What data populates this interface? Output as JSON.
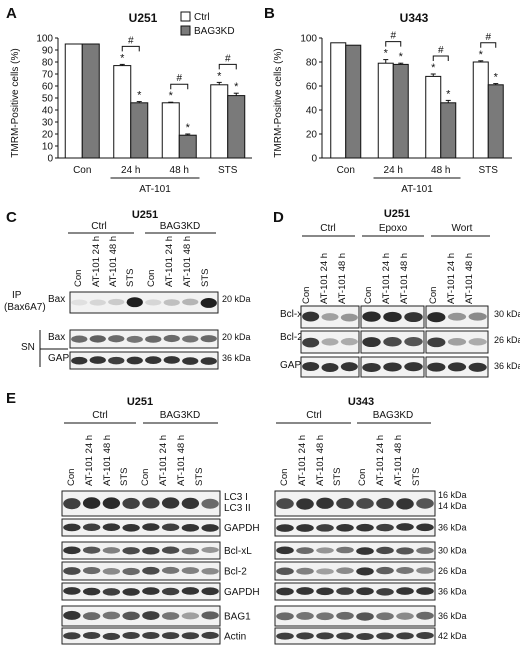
{
  "panels": {
    "A": {
      "letter": "A",
      "title": "U251",
      "legend": [
        "Ctrl",
        "BAG3KD"
      ],
      "ylabel": "TMRM-Positive cells (%)",
      "yticks": [
        "0",
        "10",
        "20",
        "30",
        "40",
        "50",
        "60",
        "70",
        "80",
        "90",
        "100"
      ],
      "categories": [
        "Con",
        "24 h",
        "48 h",
        "STS"
      ],
      "group_label": "AT-101",
      "star": "*",
      "hash": "#"
    },
    "B": {
      "letter": "B",
      "title": "U343",
      "ylabel": "TMRM-Positive cells (%)",
      "yticks": [
        "0",
        "20",
        "40",
        "60",
        "80",
        "100"
      ],
      "categories": [
        "Con",
        "24 h",
        "48 h",
        "STS"
      ],
      "group_label": "AT-101",
      "star": "*",
      "hash": "#"
    },
    "C": {
      "letter": "C",
      "title": "U251",
      "groups": [
        "Ctrl",
        "BAG3KD"
      ],
      "lanes": [
        "Con",
        "AT-101 24 h",
        "AT-101 48 h",
        "STS",
        "Con",
        "AT-101 24 h",
        "AT-101 48 h",
        "STS"
      ],
      "row_labels": {
        "ip": "IP",
        "ip_ab": "(Bax6A7)",
        "sn": "SN",
        "bax1": "Bax",
        "bax2": "Bax",
        "gapdh": "GAPDH"
      },
      "sizes": [
        "20 kDa",
        "20 kDa",
        "36 kDa"
      ]
    },
    "D": {
      "letter": "D",
      "title": "U251",
      "groups": [
        "Ctrl",
        "Epoxo",
        "Wort"
      ],
      "lanes": [
        "Con",
        "AT-101 24 h",
        "AT-101 48 h",
        "Con",
        "AT-101 24 h",
        "AT-101 48 h",
        "Con",
        "AT-101 24 h",
        "AT-101 48 h"
      ],
      "rows": [
        "Bcl-xL",
        "Bcl-2",
        "GAPDH"
      ],
      "sizes": [
        "30 kDa",
        "26 kDa",
        "36 kDa"
      ]
    },
    "E": {
      "letter": "E",
      "left_title": "U251",
      "right_title": "U343",
      "groups": [
        "Ctrl",
        "BAG3KD"
      ],
      "lanes": [
        "Con",
        "AT-101 24 h",
        "AT-101 48 h",
        "STS",
        "Con",
        "AT-101 24 h",
        "AT-101 48 h",
        "STS"
      ],
      "rows": [
        "LC3 I",
        "LC3 II",
        "GAPDH",
        "Bcl-xL",
        "Bcl-2",
        "GAPDH",
        "BAG1",
        "Actin"
      ],
      "sizes": [
        "16 kDa",
        "14 kDa",
        "36 kDa",
        "30 kDa",
        "26 kDa",
        "36 kDa",
        "36 kDa",
        "42 kDa"
      ]
    }
  },
  "chart_data": [
    {
      "type": "bar",
      "title": "U251",
      "xlabel": "",
      "ylabel": "TMRM-Positive cells (%)",
      "ylim": [
        0,
        100
      ],
      "categories": [
        "Con",
        "24 h",
        "48 h",
        "STS"
      ],
      "series": [
        {
          "name": "Ctrl",
          "values": [
            95,
            77,
            46,
            61
          ],
          "errors": [
            0,
            1,
            0.5,
            2
          ]
        },
        {
          "name": "BAG3KD",
          "values": [
            95,
            46,
            19,
            52
          ],
          "errors": [
            0,
            1,
            1,
            2
          ]
        }
      ],
      "legend": "top-right",
      "colors": [
        "#ffffff",
        "#7a7a7a"
      ]
    },
    {
      "type": "bar",
      "title": "U343",
      "xlabel": "",
      "ylabel": "TMRM-Positive cells (%)",
      "ylim": [
        0,
        100
      ],
      "categories": [
        "Con",
        "24 h",
        "48 h",
        "STS"
      ],
      "series": [
        {
          "name": "Ctrl",
          "values": [
            96,
            79,
            68,
            80
          ],
          "errors": [
            0,
            3,
            2,
            1
          ]
        },
        {
          "name": "BAG3KD",
          "values": [
            94,
            78,
            46,
            61
          ],
          "errors": [
            0,
            1,
            2,
            1
          ]
        }
      ],
      "colors": [
        "#ffffff",
        "#7a7a7a"
      ]
    }
  ]
}
